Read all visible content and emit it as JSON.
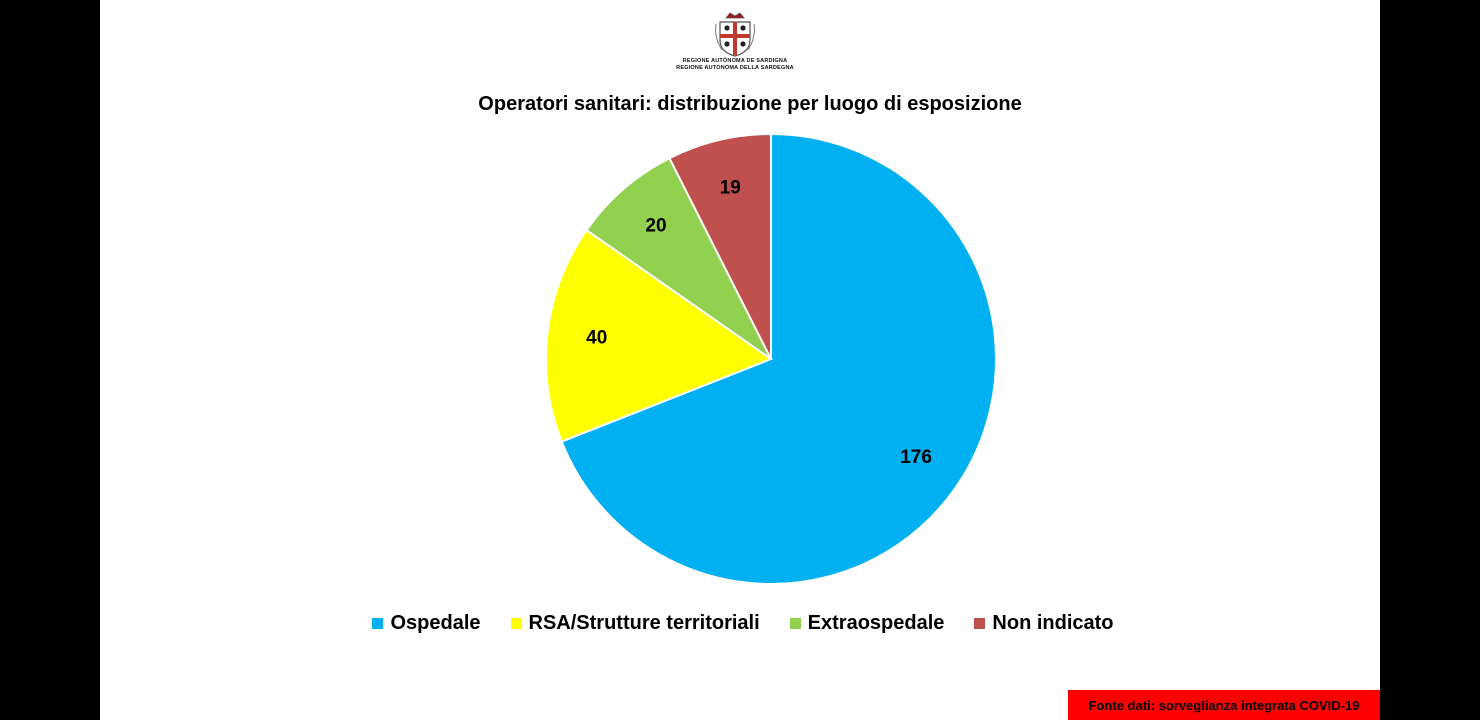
{
  "logo": {
    "line1": "REGIONE AUTÒNOMA DE SARDIGNA",
    "line2": "REGIONE AUTONOMA DELLA SARDEGNA"
  },
  "chart_data": {
    "type": "pie",
    "title": "Operatori sanitari: distribuzione per luogo di esposizione",
    "categories": [
      "Ospedale",
      "RSA/Strutture territoriali",
      "Extraospedale",
      "Non indicato"
    ],
    "values": [
      176,
      40,
      20,
      19
    ],
    "colors": [
      "#00b0f0",
      "#ffff00",
      "#92d050",
      "#c0504d"
    ],
    "start": "12 o'clock, clockwise",
    "data_labels": true,
    "legend_position": "bottom"
  },
  "source": "Fonte dati: sorveglianza integrata COVID-19"
}
